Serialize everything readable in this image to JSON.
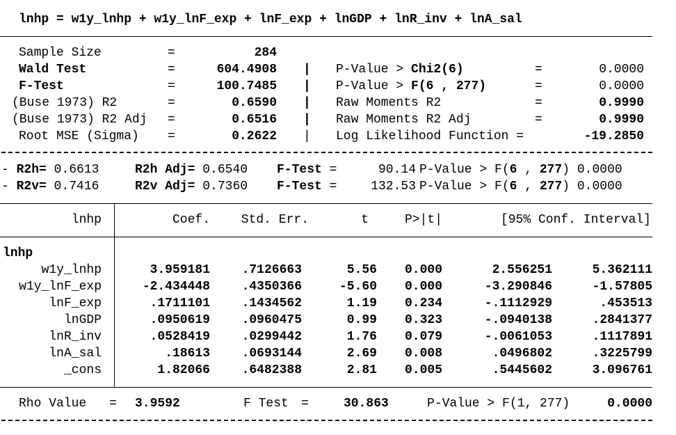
{
  "equation": "lnhp = w1y_lnhp + w1y_lnF_exp + lnF_exp + lnGDP + lnR_inv + lnA_sal",
  "stats": {
    "rows": [
      {
        "label": "Sample Size",
        "eq": "=",
        "value": "284",
        "sep": "",
        "label2": "",
        "eq2": "",
        "value2": ""
      },
      {
        "label": "Wald Test",
        "eq": "=",
        "value": "604.4908",
        "sep": "|",
        "label2_pre": "P-Value > ",
        "label2_bold": "Chi2(6)",
        "eq2": "=",
        "value2": "0.0000"
      },
      {
        "label": "F-Test",
        "eq": "=",
        "value": "100.7485",
        "sep": "|",
        "label2_pre": "P-Value > ",
        "label2_bold": "F(6 , 277)",
        "eq2": "=",
        "value2": "0.0000"
      },
      {
        "label": "(Buse 1973) R2",
        "eq": "=",
        "value": "0.6590",
        "sep": "|",
        "label2": "Raw Moments R2",
        "eq2": "=",
        "value2": "0.9990"
      },
      {
        "label": "(Buse 1973) R2 Adj",
        "eq": "=",
        "value": "0.6516",
        "sep": "|",
        "label2": "Raw Moments R2 Adj",
        "eq2": "=",
        "value2": "0.9990"
      },
      {
        "label": "Root MSE (Sigma)",
        "eq": "=",
        "value": "0.2622",
        "sep": "|",
        "label2": "Log Likelihood Function =",
        "eq2": "",
        "value2": "-19.2850"
      }
    ]
  },
  "r2": [
    {
      "prefix": "- ",
      "a_label": "R2h=",
      "a_val": "0.6613",
      "b_label": "R2h Adj=",
      "b_val": "0.6540",
      "f_label": "F-Test",
      "f_eq": "=",
      "f_val": "90.14",
      "p_pre": "P-Value > F(",
      "p_a": "6",
      "p_mid": " , ",
      "p_b": "277",
      "p_post": ")",
      "p_val": "0.0000"
    },
    {
      "prefix": "- ",
      "a_label": "R2v=",
      "a_val": "0.7416",
      "b_label": "R2v Adj=",
      "b_val": "0.7360",
      "f_label": "F-Test",
      "f_eq": "=",
      "f_val": "132.53",
      "p_pre": "P-Value > F(",
      "p_a": "6",
      "p_mid": " , ",
      "p_b": "277",
      "p_post": ")",
      "p_val": "0.0000"
    }
  ],
  "table": {
    "depvar": "lnhp",
    "headers": [
      "Coef.",
      "Std. Err.",
      "t",
      "P>|t|",
      "[95% Conf. Interval]"
    ],
    "group": "lnhp",
    "rows": [
      {
        "name": "w1y_lnhp",
        "coef": "3.959181",
        "se": ".7126663",
        "t": "5.56",
        "p": "0.000",
        "lo": "2.556251",
        "hi": "5.362111"
      },
      {
        "name": "w1y_lnF_exp",
        "coef": "-2.434448",
        "se": ".4350366",
        "t": "-5.60",
        "p": "0.000",
        "lo": "-3.290846",
        "hi": "-1.57805"
      },
      {
        "name": "lnF_exp",
        "coef": ".1711101",
        "se": ".1434562",
        "t": "1.19",
        "p": "0.234",
        "lo": "-.1112929",
        "hi": ".453513"
      },
      {
        "name": "lnGDP",
        "coef": ".0950619",
        "se": ".0960475",
        "t": "0.99",
        "p": "0.323",
        "lo": "-.0940138",
        "hi": ".2841377"
      },
      {
        "name": "lnR_inv",
        "coef": ".0528419",
        "se": ".0299442",
        "t": "1.76",
        "p": "0.079",
        "lo": "-.0061053",
        "hi": ".1117891"
      },
      {
        "name": "lnA_sal",
        "coef": ".18613",
        "se": ".0693144",
        "t": "2.69",
        "p": "0.008",
        "lo": ".0496802",
        "hi": ".3225799"
      },
      {
        "name": "_cons",
        "coef": "1.82066",
        "se": ".6482388",
        "t": "2.81",
        "p": "0.005",
        "lo": ".5445602",
        "hi": "3.096761"
      }
    ]
  },
  "rho": {
    "label": "Rho Value",
    "eq": "=",
    "value": "3.9592",
    "f_label": "F Test",
    "f_eq": "=",
    "f_value": "30.863",
    "p_label": "P-Value > F(1, 277)",
    "p_value": "0.0000"
  }
}
